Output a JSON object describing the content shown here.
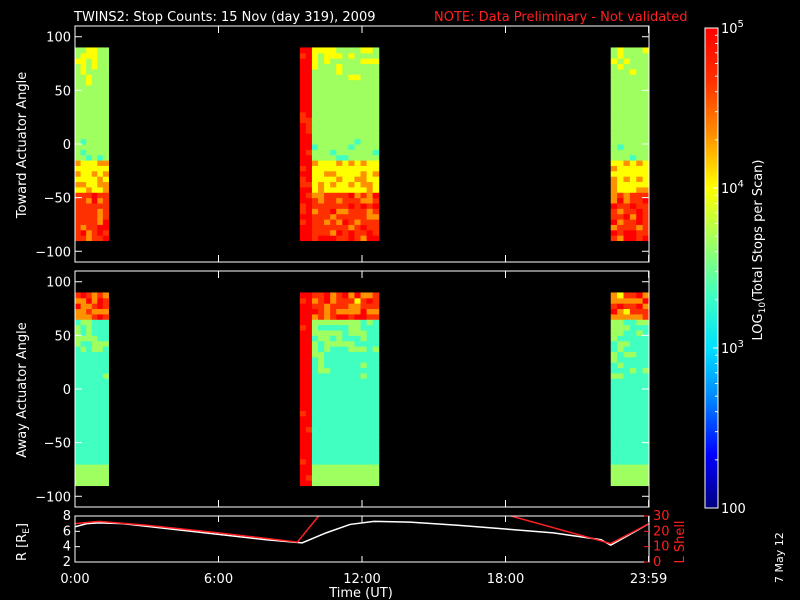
{
  "title": "TWINS2: Stop Counts: 15 Nov (day 319), 2009",
  "note": "NOTE: Data Preliminary - Not validated",
  "stamp": "7 May 12",
  "colors": {
    "foreground": "#ffffff",
    "note": "#ff2020",
    "lshell": "#ff2020",
    "range": "#ffffff",
    "background": "#000000"
  },
  "chart_data": [
    {
      "type": "heatmap",
      "name": "toward",
      "ylabel": "Toward Actuator Angle",
      "ylim": [
        -110,
        110
      ],
      "yticks": [
        100,
        50,
        0,
        -50,
        -100
      ],
      "y_data_range": [
        -90,
        90
      ],
      "x_tick_labels": [],
      "time_blocks_hours": [
        [
          0,
          1.4
        ],
        [
          9.4,
          12.7
        ],
        [
          22.4,
          24
        ]
      ]
    },
    {
      "type": "heatmap",
      "name": "away",
      "ylabel": "Away Actuator Angle",
      "ylim": [
        -110,
        110
      ],
      "yticks": [
        100,
        50,
        0,
        -50,
        -100
      ],
      "y_data_range": [
        -90,
        90
      ],
      "x_tick_labels": [],
      "time_blocks_hours": [
        [
          0,
          1.4
        ],
        [
          9.4,
          12.7
        ],
        [
          22.4,
          24
        ]
      ]
    },
    {
      "type": "line",
      "name": "orbit",
      "ylabel": "R [R",
      "ylabel_sub": "E",
      "ylabel_end": "]",
      "y2label": "L Shell",
      "ylim": [
        2,
        8
      ],
      "yticks": [
        8,
        6,
        4,
        2
      ],
      "y2lim": [
        0,
        30
      ],
      "y2ticks": [
        30,
        20,
        10,
        0
      ],
      "xlabel": "Time (UT)",
      "xlim": [
        0,
        24
      ],
      "x_ticks_hours": [
        0,
        6,
        12,
        18,
        23.983
      ],
      "x_tick_labels": [
        "0:00",
        "6:00",
        "12:00",
        "18:00",
        "23:59"
      ],
      "series": [
        {
          "name": "R",
          "axis": "left",
          "color": "#ffffff",
          "x": [
            0,
            0.5,
            1,
            2,
            4,
            6,
            8,
            9.5,
            10.5,
            11.5,
            12.5,
            14,
            16,
            18,
            20,
            22,
            22.4,
            24
          ],
          "y": [
            6.6,
            7.0,
            7.1,
            7.0,
            6.3,
            5.6,
            4.9,
            4.5,
            5.8,
            6.9,
            7.3,
            7.2,
            6.8,
            6.3,
            5.8,
            4.9,
            4.2,
            7.0
          ]
        },
        {
          "name": "L Shell",
          "axis": "right",
          "color": "#ff2020",
          "x": [
            0,
            1,
            3,
            6,
            9.3,
            10.5,
            17.9,
            18,
            22.4,
            24
          ],
          "y": [
            25,
            26.5,
            24,
            19,
            13,
            36,
            36,
            31,
            12,
            25
          ]
        }
      ]
    }
  ],
  "colorbar": {
    "label_main": "LOG",
    "label_sub": "10",
    "label_rest": "(Total Stops per Scan)",
    "ticks": [
      {
        "value": 100,
        "base": "100",
        "exp": ""
      },
      {
        "value": 1000,
        "base": "10",
        "exp": "3"
      },
      {
        "value": 10000,
        "base": "10",
        "exp": "4"
      },
      {
        "value": 100000,
        "base": "10",
        "exp": "5"
      }
    ],
    "range": [
      100,
      100000
    ],
    "colormap": [
      "#000080",
      "#0000ff",
      "#0080ff",
      "#00e0ff",
      "#40ffc0",
      "#a0ff60",
      "#ffff00",
      "#ff9000",
      "#ff3000",
      "#ff0000"
    ]
  }
}
